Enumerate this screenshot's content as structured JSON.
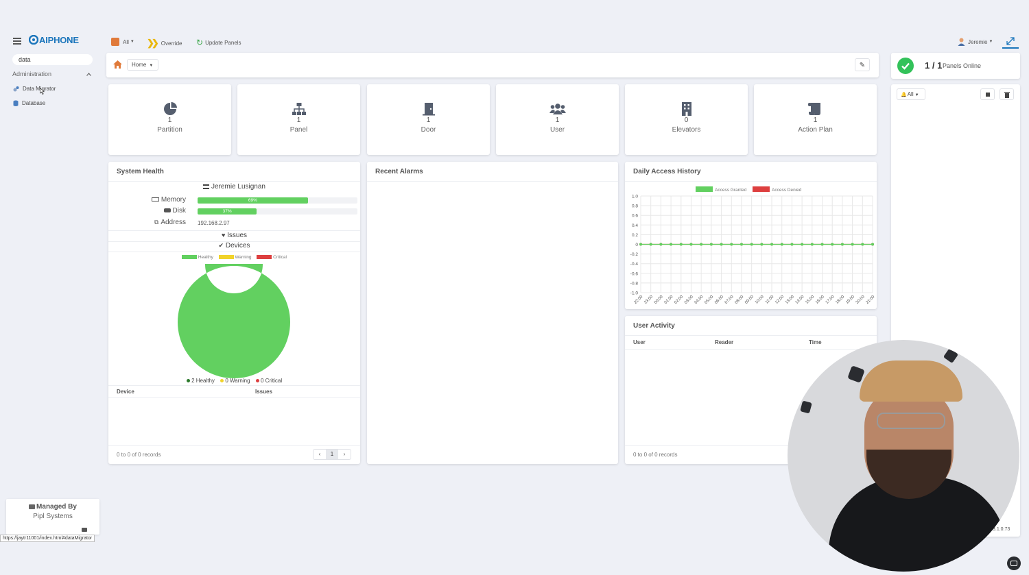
{
  "brand": "AIPHONE",
  "sidebar": {
    "search_value": "data",
    "section_label": "Administration",
    "items": [
      {
        "label": "Data Migrator"
      },
      {
        "label": "Database"
      }
    ],
    "managed_by_label": "Managed By",
    "managed_by_company": "Pipl Systems",
    "status_url": "https://jaytr11001/index.html#dataMigrator"
  },
  "topbar": {
    "filter_label": "All",
    "override_label": "Override",
    "update_panels_label": "Update Panels",
    "user_label": "Jeremie"
  },
  "breadcrumb": {
    "home_label": "Home"
  },
  "panels_online": {
    "count": "1 / 1",
    "label": "Panels Online"
  },
  "right_panel": {
    "filter_label": "All",
    "version": "3.1.0.73"
  },
  "tiles": [
    {
      "count": "1",
      "label": "Partition",
      "icon": "pie-chart-icon"
    },
    {
      "count": "1",
      "label": "Panel",
      "icon": "network-icon"
    },
    {
      "count": "1",
      "label": "Door",
      "icon": "door-icon"
    },
    {
      "count": "1",
      "label": "User",
      "icon": "users-icon"
    },
    {
      "count": "0",
      "label": "Elevators",
      "icon": "building-icon"
    },
    {
      "count": "1",
      "label": "Action Plan",
      "icon": "scroll-icon"
    }
  ],
  "system_health": {
    "title": "System Health",
    "host": "Jeremie Lusignan",
    "memory_label": "Memory",
    "memory_pct": 69,
    "memory_text": "69%",
    "disk_label": "Disk",
    "disk_pct": 37,
    "disk_text": "37%",
    "address_label": "Address",
    "address_value": "192.168.2.97",
    "issues_label": "Issues",
    "devices_label": "Devices",
    "legend": [
      "Healthy",
      "Warning",
      "Critical"
    ],
    "counts": [
      "2 Healthy",
      "0 Warning",
      "0 Critical"
    ],
    "table_headers": [
      "Device",
      "Issues"
    ],
    "records": "0 to 0 of 0 records",
    "page": "1"
  },
  "recent_alarms": {
    "title": "Recent Alarms"
  },
  "daily_access": {
    "title": "Daily Access History"
  },
  "user_activity": {
    "title": "User Activity",
    "headers": [
      "User",
      "Reader",
      "Time"
    ],
    "records": "0 to 0 of 0 records"
  },
  "colors": {
    "accent": "#1a75bb",
    "healthy": "#62d060",
    "warning": "#f1d32b",
    "critical": "#dd3f3f",
    "granted": "#62d060",
    "denied": "#dd3f3f"
  },
  "chart_data": [
    {
      "type": "pie",
      "title": "",
      "categories": [
        "Healthy",
        "Warning",
        "Critical"
      ],
      "values": [
        2,
        0,
        0
      ],
      "donut": true,
      "legend": "top"
    },
    {
      "type": "line",
      "title": "",
      "x": [
        "22:00",
        "23:00",
        "00:00",
        "01:00",
        "02:00",
        "03:00",
        "04:00",
        "05:00",
        "06:00",
        "07:00",
        "08:00",
        "09:00",
        "10:00",
        "11:00",
        "12:00",
        "13:00",
        "14:00",
        "15:00",
        "16:00",
        "17:00",
        "18:00",
        "19:00",
        "20:00",
        "21:00"
      ],
      "series": [
        {
          "name": "Access Granted",
          "values": [
            0,
            0,
            0,
            0,
            0,
            0,
            0,
            0,
            0,
            0,
            0,
            0,
            0,
            0,
            0,
            0,
            0,
            0,
            0,
            0,
            0,
            0,
            0,
            0
          ]
        },
        {
          "name": "Access Denied",
          "values": [
            0,
            0,
            0,
            0,
            0,
            0,
            0,
            0,
            0,
            0,
            0,
            0,
            0,
            0,
            0,
            0,
            0,
            0,
            0,
            0,
            0,
            0,
            0,
            0
          ]
        }
      ],
      "ylim": [
        -1.0,
        1.0
      ],
      "yticks": [
        "1.0",
        "0.8",
        "0.6",
        "0.4",
        "0.2",
        "0",
        "-0.2",
        "-0.4",
        "-0.6",
        "-0.8",
        "-1.0"
      ],
      "grid": true,
      "legend": "top"
    }
  ]
}
